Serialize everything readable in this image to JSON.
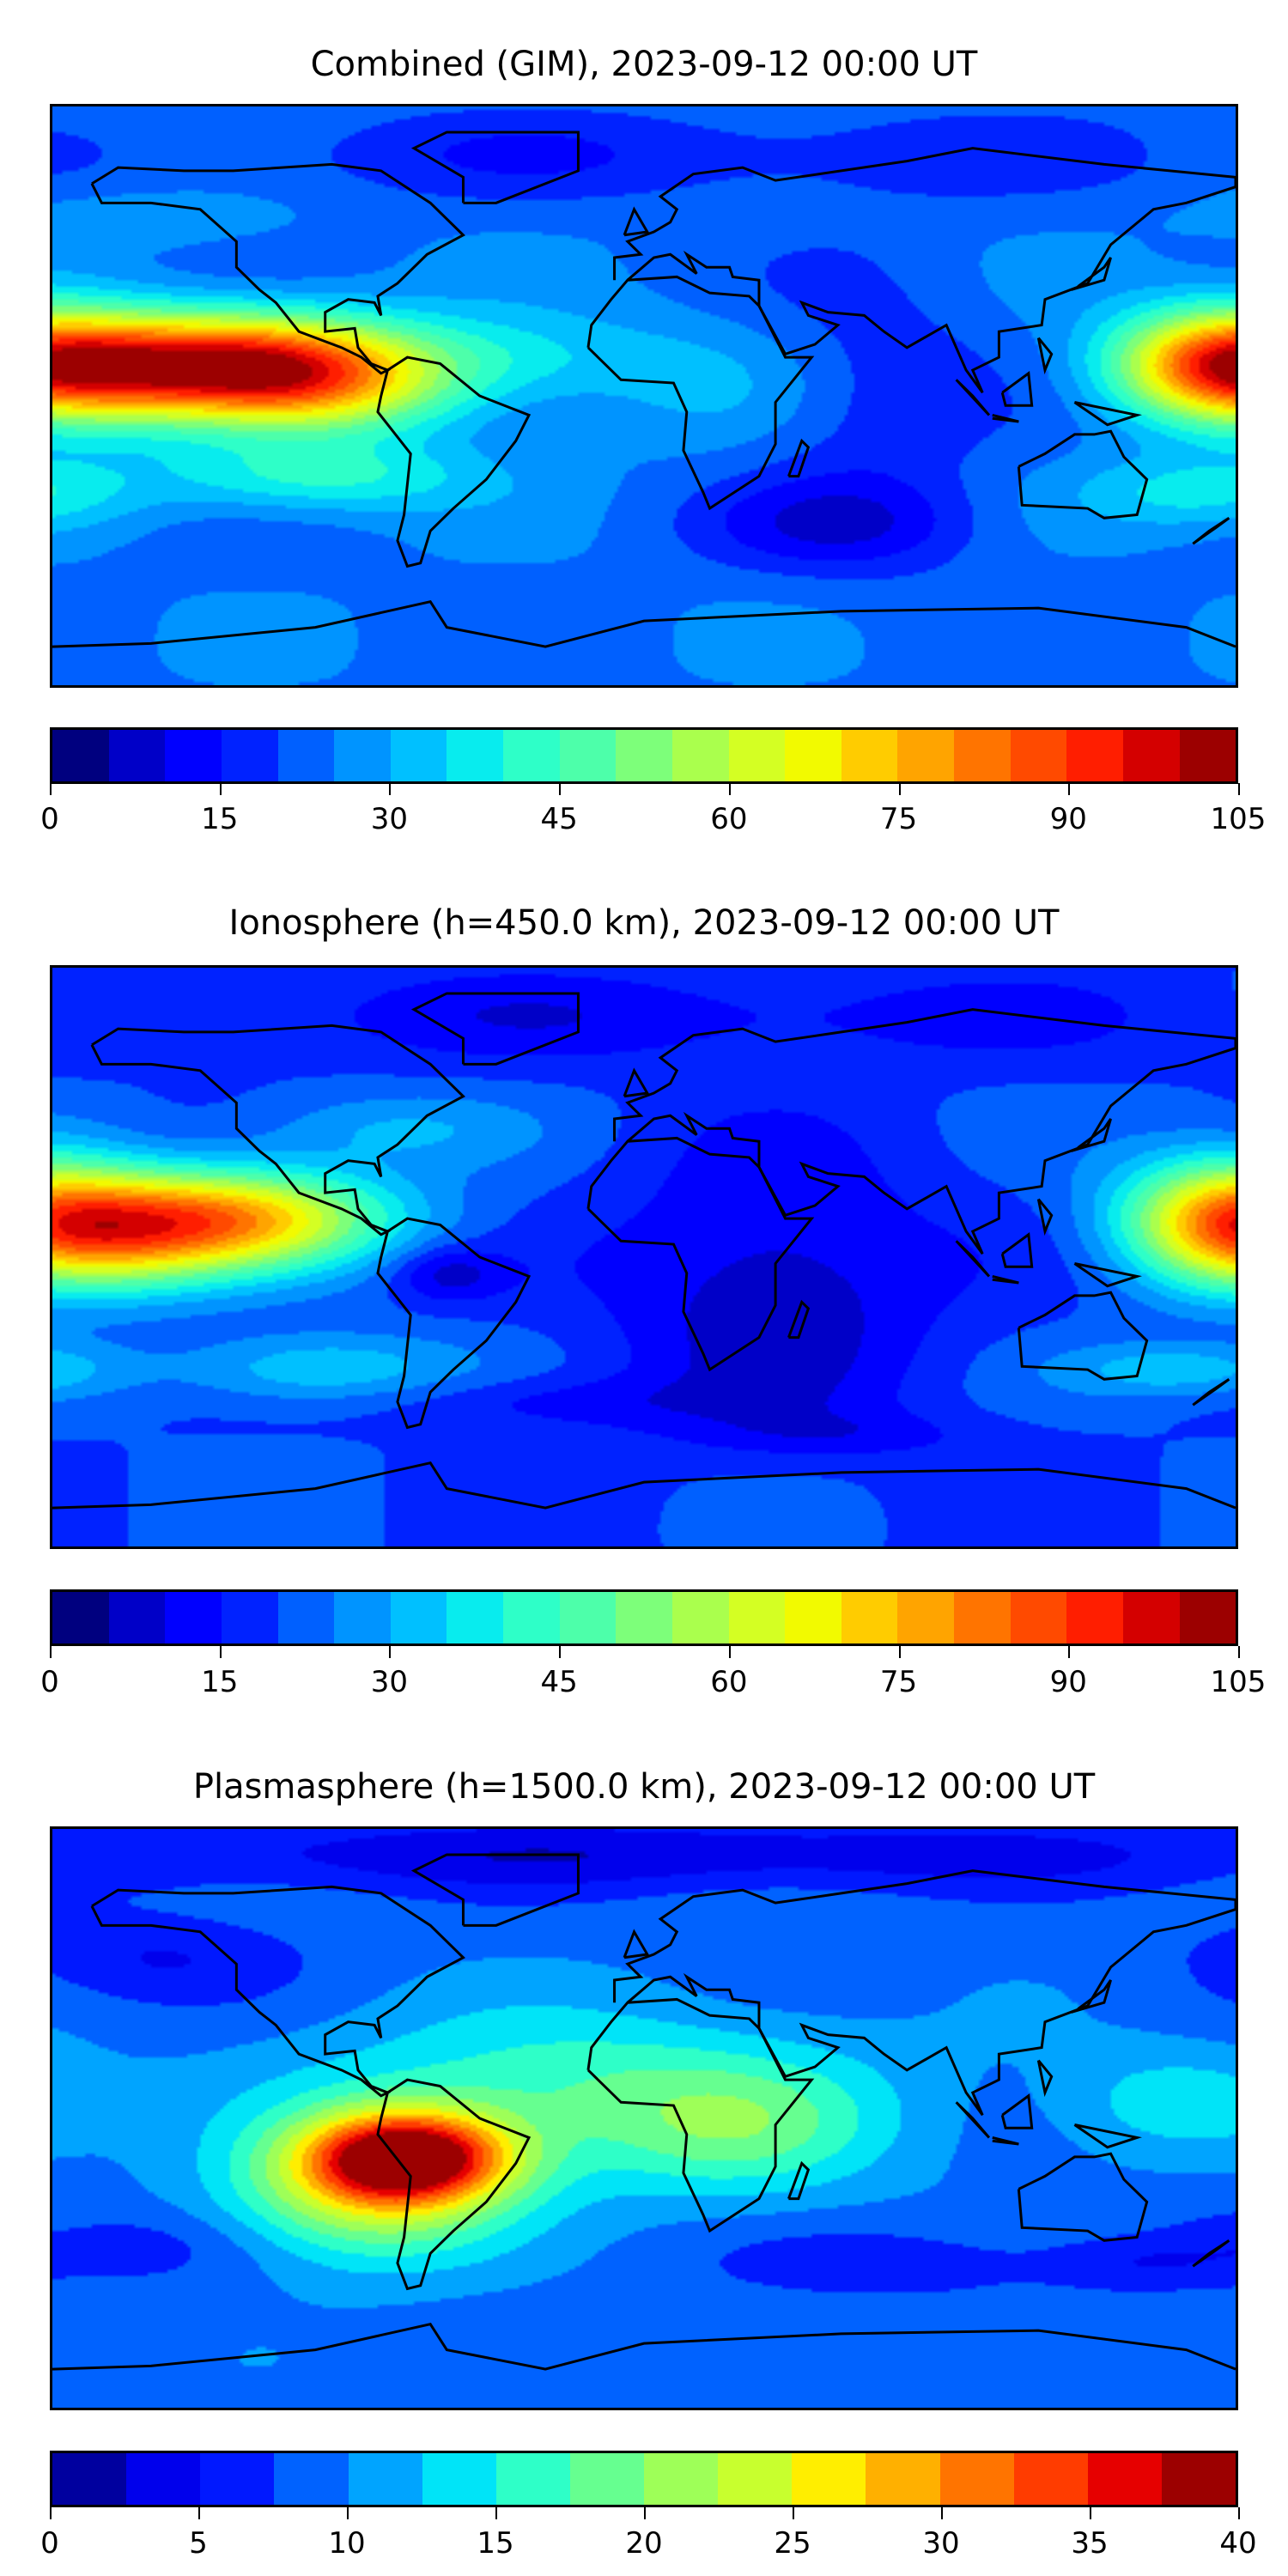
{
  "colors": {
    "levels21": [
      "#00007f",
      "#0000c8",
      "#0000ff",
      "#0022ff",
      "#0060ff",
      "#0094ff",
      "#00c0ff",
      "#08ecee",
      "#2effc8",
      "#4dffaa",
      "#7dff7a",
      "#aaff4d",
      "#d4ff23",
      "#f2fa00",
      "#ffcc00",
      "#ffa400",
      "#ff7400",
      "#ff4a00",
      "#ff1e00",
      "#d40000",
      "#9c0000"
    ],
    "levels16": [
      "#00009f",
      "#0000ec",
      "#0018ff",
      "#0062ff",
      "#00a4ff",
      "#00e4f8",
      "#2effc8",
      "#66ff90",
      "#9eff58",
      "#c8ff2e",
      "#ffee00",
      "#ffb000",
      "#ff7400",
      "#ff3c00",
      "#e60000",
      "#9c0000"
    ]
  },
  "chart_data": [
    {
      "type": "heatmap",
      "title": "Combined (GIM), 2023-09-12 00:00 UT",
      "colorbar": {
        "range": [
          0,
          105
        ],
        "step": 5,
        "ticks": [
          "0",
          "15",
          "30",
          "45",
          "60",
          "75",
          "90",
          "105"
        ]
      }
    },
    {
      "type": "heatmap",
      "title": "Ionosphere  (h=450.0 km), 2023-09-12 00:00 UT",
      "colorbar": {
        "range": [
          0,
          105
        ],
        "step": 5,
        "ticks": [
          "0",
          "15",
          "30",
          "45",
          "60",
          "75",
          "90",
          "105"
        ]
      }
    },
    {
      "type": "heatmap",
      "title": "Plasmasphere (h=1500.0 km), 2023-09-12 00:00 UT",
      "colorbar": {
        "range": [
          0,
          40
        ],
        "step": 2.5,
        "ticks": [
          "0",
          "5",
          "10",
          "15",
          "20",
          "25",
          "30",
          "35",
          "40"
        ]
      }
    }
  ]
}
